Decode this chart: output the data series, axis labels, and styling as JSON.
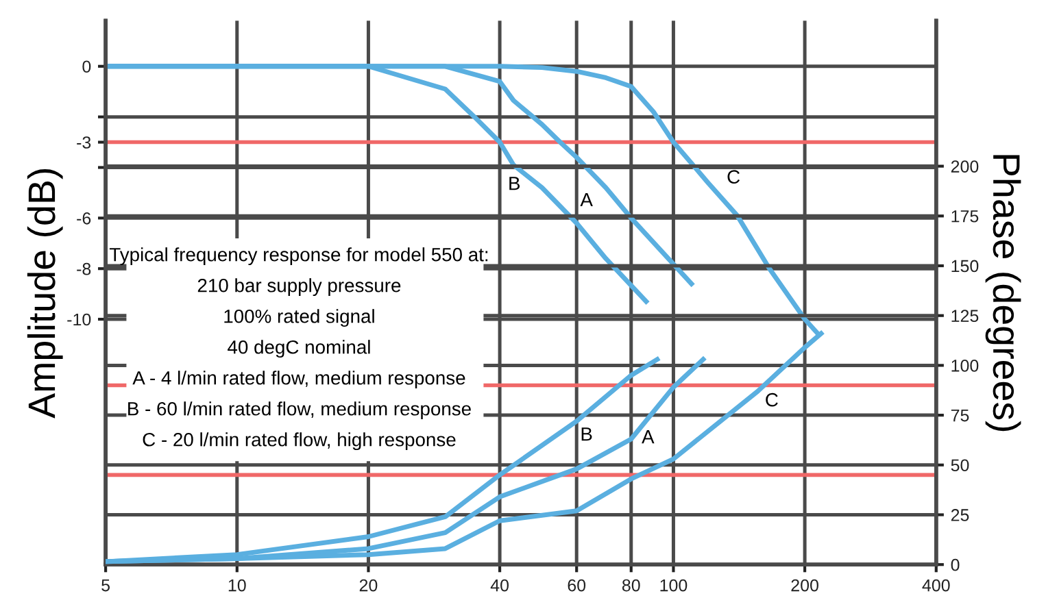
{
  "chart_data": {
    "type": "line",
    "xlabel": null,
    "ylabel": "Amplitude (dB)",
    "y2label": "Phase (degrees)",
    "log": "x",
    "xlim": [
      5,
      400
    ],
    "xticks": [
      5,
      10,
      20,
      40,
      60,
      80,
      100,
      200,
      400
    ],
    "ylim": [
      -19.7,
      1.8
    ],
    "yticks": [
      0,
      {
        "value": -2,
        "label": null
      },
      -3,
      {
        "value": -4,
        "label": null
      },
      -6,
      -8,
      -10
    ],
    "y2lim": [
      0,
      273
    ],
    "y2ticks": [
      0,
      25,
      50,
      75,
      100,
      125,
      150,
      175,
      200
    ],
    "grid": true,
    "series": [
      {
        "axis": "y",
        "color": "#5aafe0",
        "x": [
          5,
          20,
          30,
          35,
          40,
          43,
          50,
          60,
          70,
          86.6
        ],
        "values": [
          0,
          0,
          -0.9,
          -2,
          -3,
          -3.9,
          -4.8,
          -6.2,
          -7.6,
          -9.3
        ]
      },
      {
        "axis": "y",
        "color": "#5aafe0",
        "x": [
          5,
          30,
          40,
          43,
          50,
          55,
          60,
          70,
          80,
          95,
          110
        ],
        "values": [
          0,
          0,
          -0.6,
          -1.35,
          -2.3,
          -3,
          -3.6,
          -4.8,
          -6,
          -7.4,
          -8.6
        ]
      },
      {
        "axis": "y",
        "color": "#5aafe0",
        "x": [
          5,
          40,
          50,
          60,
          70,
          80,
          90,
          100,
          120,
          140,
          166,
          200,
          215
        ],
        "values": [
          0,
          0,
          -0.05,
          -0.2,
          -0.45,
          -0.8,
          -1.8,
          -3,
          -4.6,
          -5.9,
          -8,
          -10,
          -10.6
        ]
      },
      {
        "axis": "y2",
        "color": "#5aafe0",
        "x": [
          5,
          10,
          20,
          30,
          40,
          60,
          80,
          91.8
        ],
        "values": [
          1.5,
          5,
          14,
          24,
          45,
          72,
          95,
          103
        ]
      },
      {
        "axis": "y2",
        "color": "#5aafe0",
        "x": [
          5,
          10,
          20,
          30,
          40,
          60,
          80,
          100,
          117
        ],
        "values": [
          1.5,
          3,
          8,
          16,
          34,
          48,
          63,
          89,
          103
        ]
      },
      {
        "axis": "y2",
        "color": "#5aafe0",
        "x": [
          5,
          10,
          20,
          30,
          40,
          60,
          80,
          100,
          156,
          200,
          218
        ],
        "values": [
          1.5,
          3,
          5,
          8,
          22,
          27,
          43,
          53,
          87,
          109,
          116
        ]
      }
    ],
    "ref_lines": [
      {
        "axis": "y",
        "value": -3,
        "color": "#f06868"
      },
      {
        "axis": "y2",
        "value": 90,
        "color": "#f06868"
      },
      {
        "axis": "y2",
        "value": 45,
        "color": "#f06868"
      }
    ],
    "annotations": [
      "Typical frequency response for model 550 at:",
      "210 bar supply pressure",
      "100% rated signal",
      "40 degC nominal",
      "A - 4 l/min rated flow, medium response",
      "B - 60 l/min rated flow, medium response",
      "C - 20 l/min rated flow, high response",
      "B",
      "A",
      "C",
      "B",
      "A",
      "C"
    ]
  }
}
